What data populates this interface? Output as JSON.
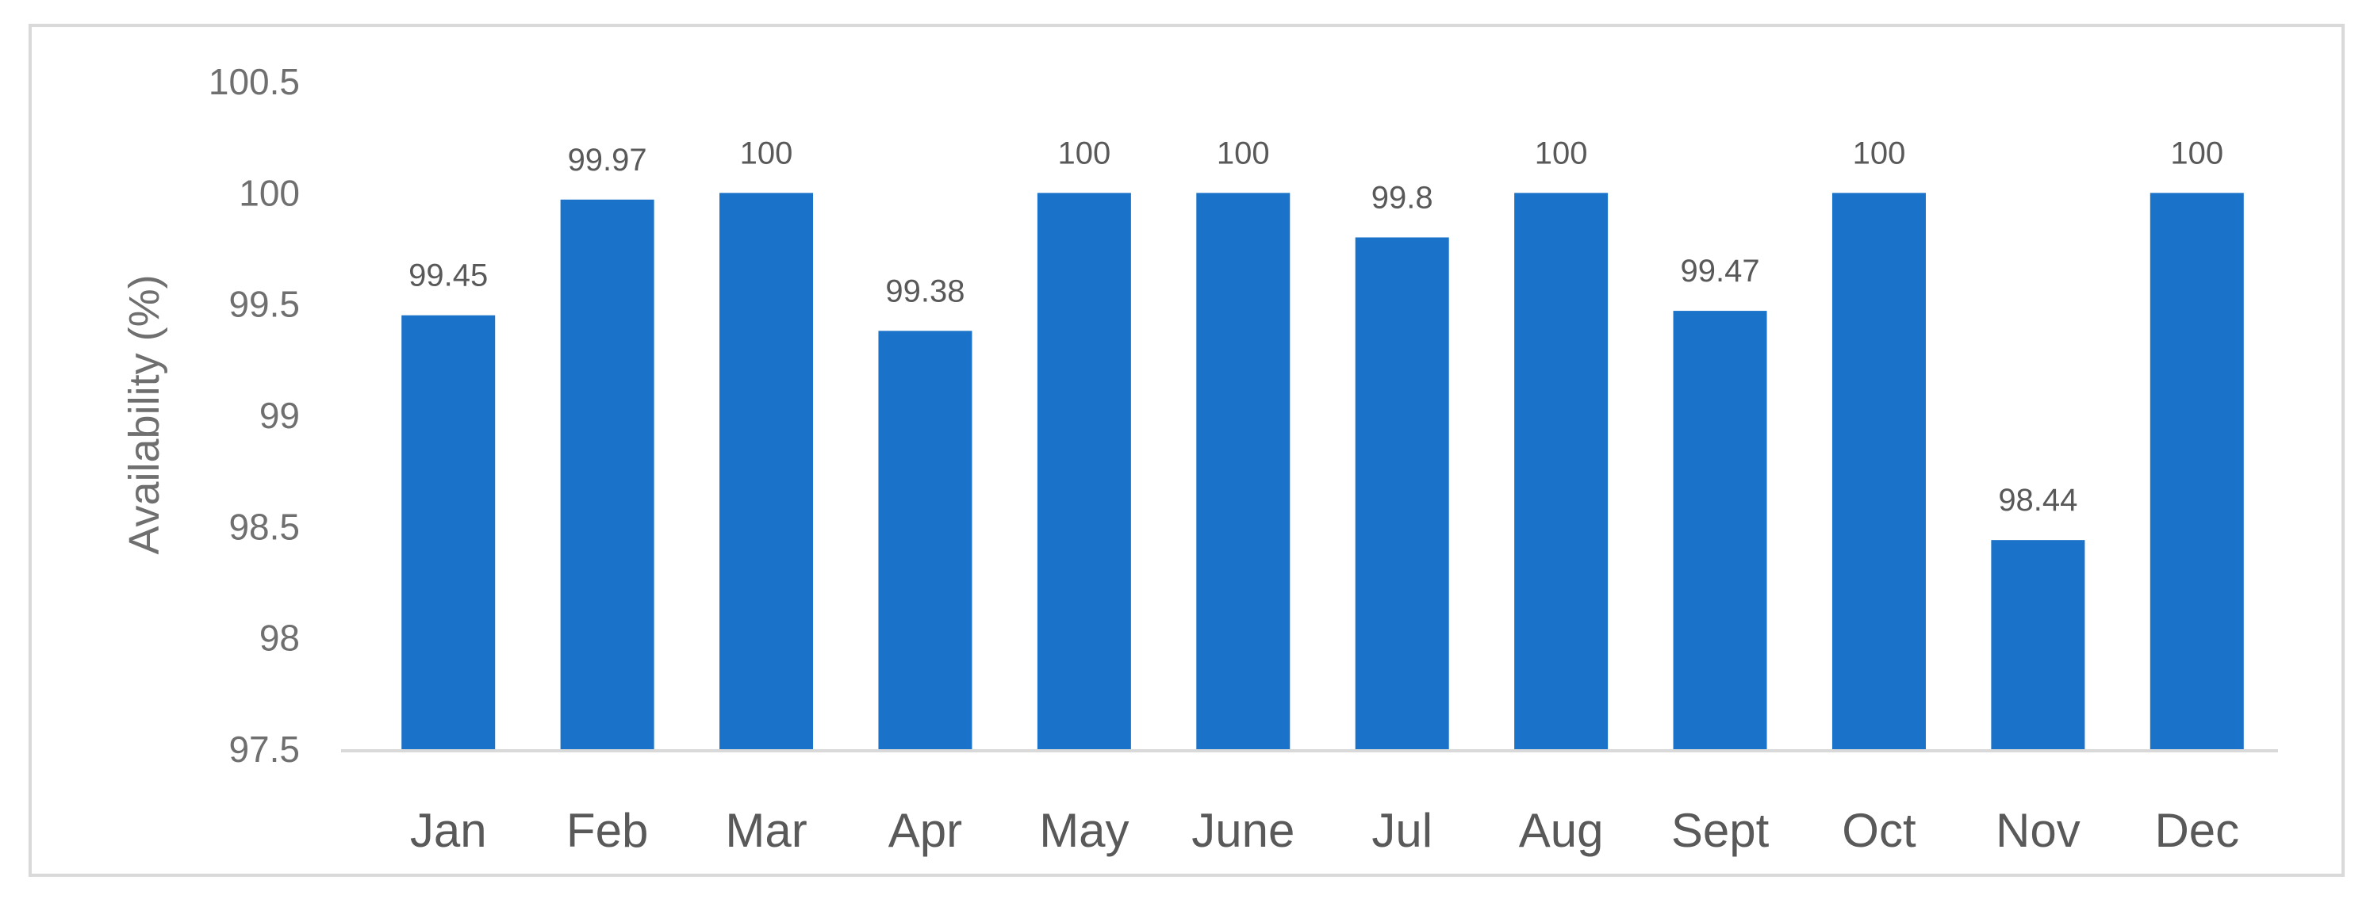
{
  "chart_data": {
    "type": "bar",
    "title": "",
    "xlabel": "",
    "ylabel": "Availability (%)",
    "categories": [
      "Jan",
      "Feb",
      "Mar",
      "Apr",
      "May",
      "June",
      "Jul",
      "Aug",
      "Sept",
      "Oct",
      "Nov",
      "Dec"
    ],
    "values": [
      99.45,
      99.97,
      100,
      99.38,
      100,
      100,
      99.8,
      100,
      99.47,
      100,
      98.44,
      100
    ],
    "data_labels": [
      "99.45",
      "99.97",
      "100",
      "99.38",
      "100",
      "100",
      "99.8",
      "100",
      "99.47",
      "100",
      "98.44",
      "100"
    ],
    "ylim": [
      97.5,
      100.5
    ],
    "yticks": [
      97.5,
      98,
      98.5,
      99,
      99.5,
      100,
      100.5
    ],
    "ytick_labels": [
      "97.5",
      "98",
      "98.5",
      "99",
      "99.5",
      "100",
      "100.5"
    ],
    "grid": false,
    "legend": "none",
    "bar_color": "#1a73c9",
    "axis_color": "#d9d9d9"
  }
}
